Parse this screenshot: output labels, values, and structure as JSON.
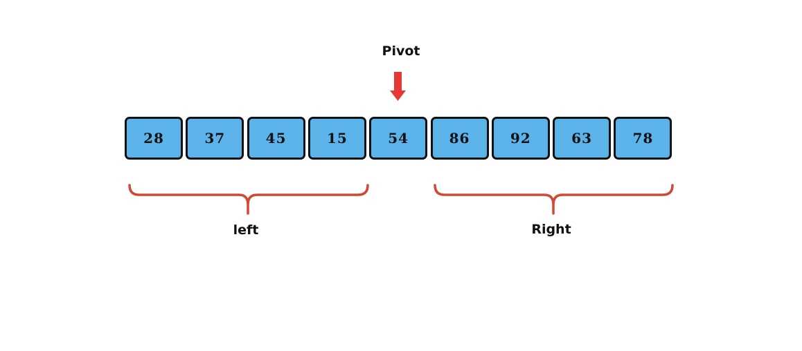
{
  "pivot": {
    "label": "Pivot",
    "arrow_color": "#e53935",
    "arrow_icon": "down-arrow-icon"
  },
  "array": {
    "values": [
      "28",
      "37",
      "45",
      "15",
      "54",
      "86",
      "92",
      "63",
      "78"
    ],
    "cell_color": "#5bb3ea",
    "border_color": "#111111"
  },
  "partitions": {
    "left": {
      "label": "left",
      "brace_color": "#d04a32"
    },
    "right": {
      "label": "Right",
      "brace_color": "#d04a32"
    }
  }
}
